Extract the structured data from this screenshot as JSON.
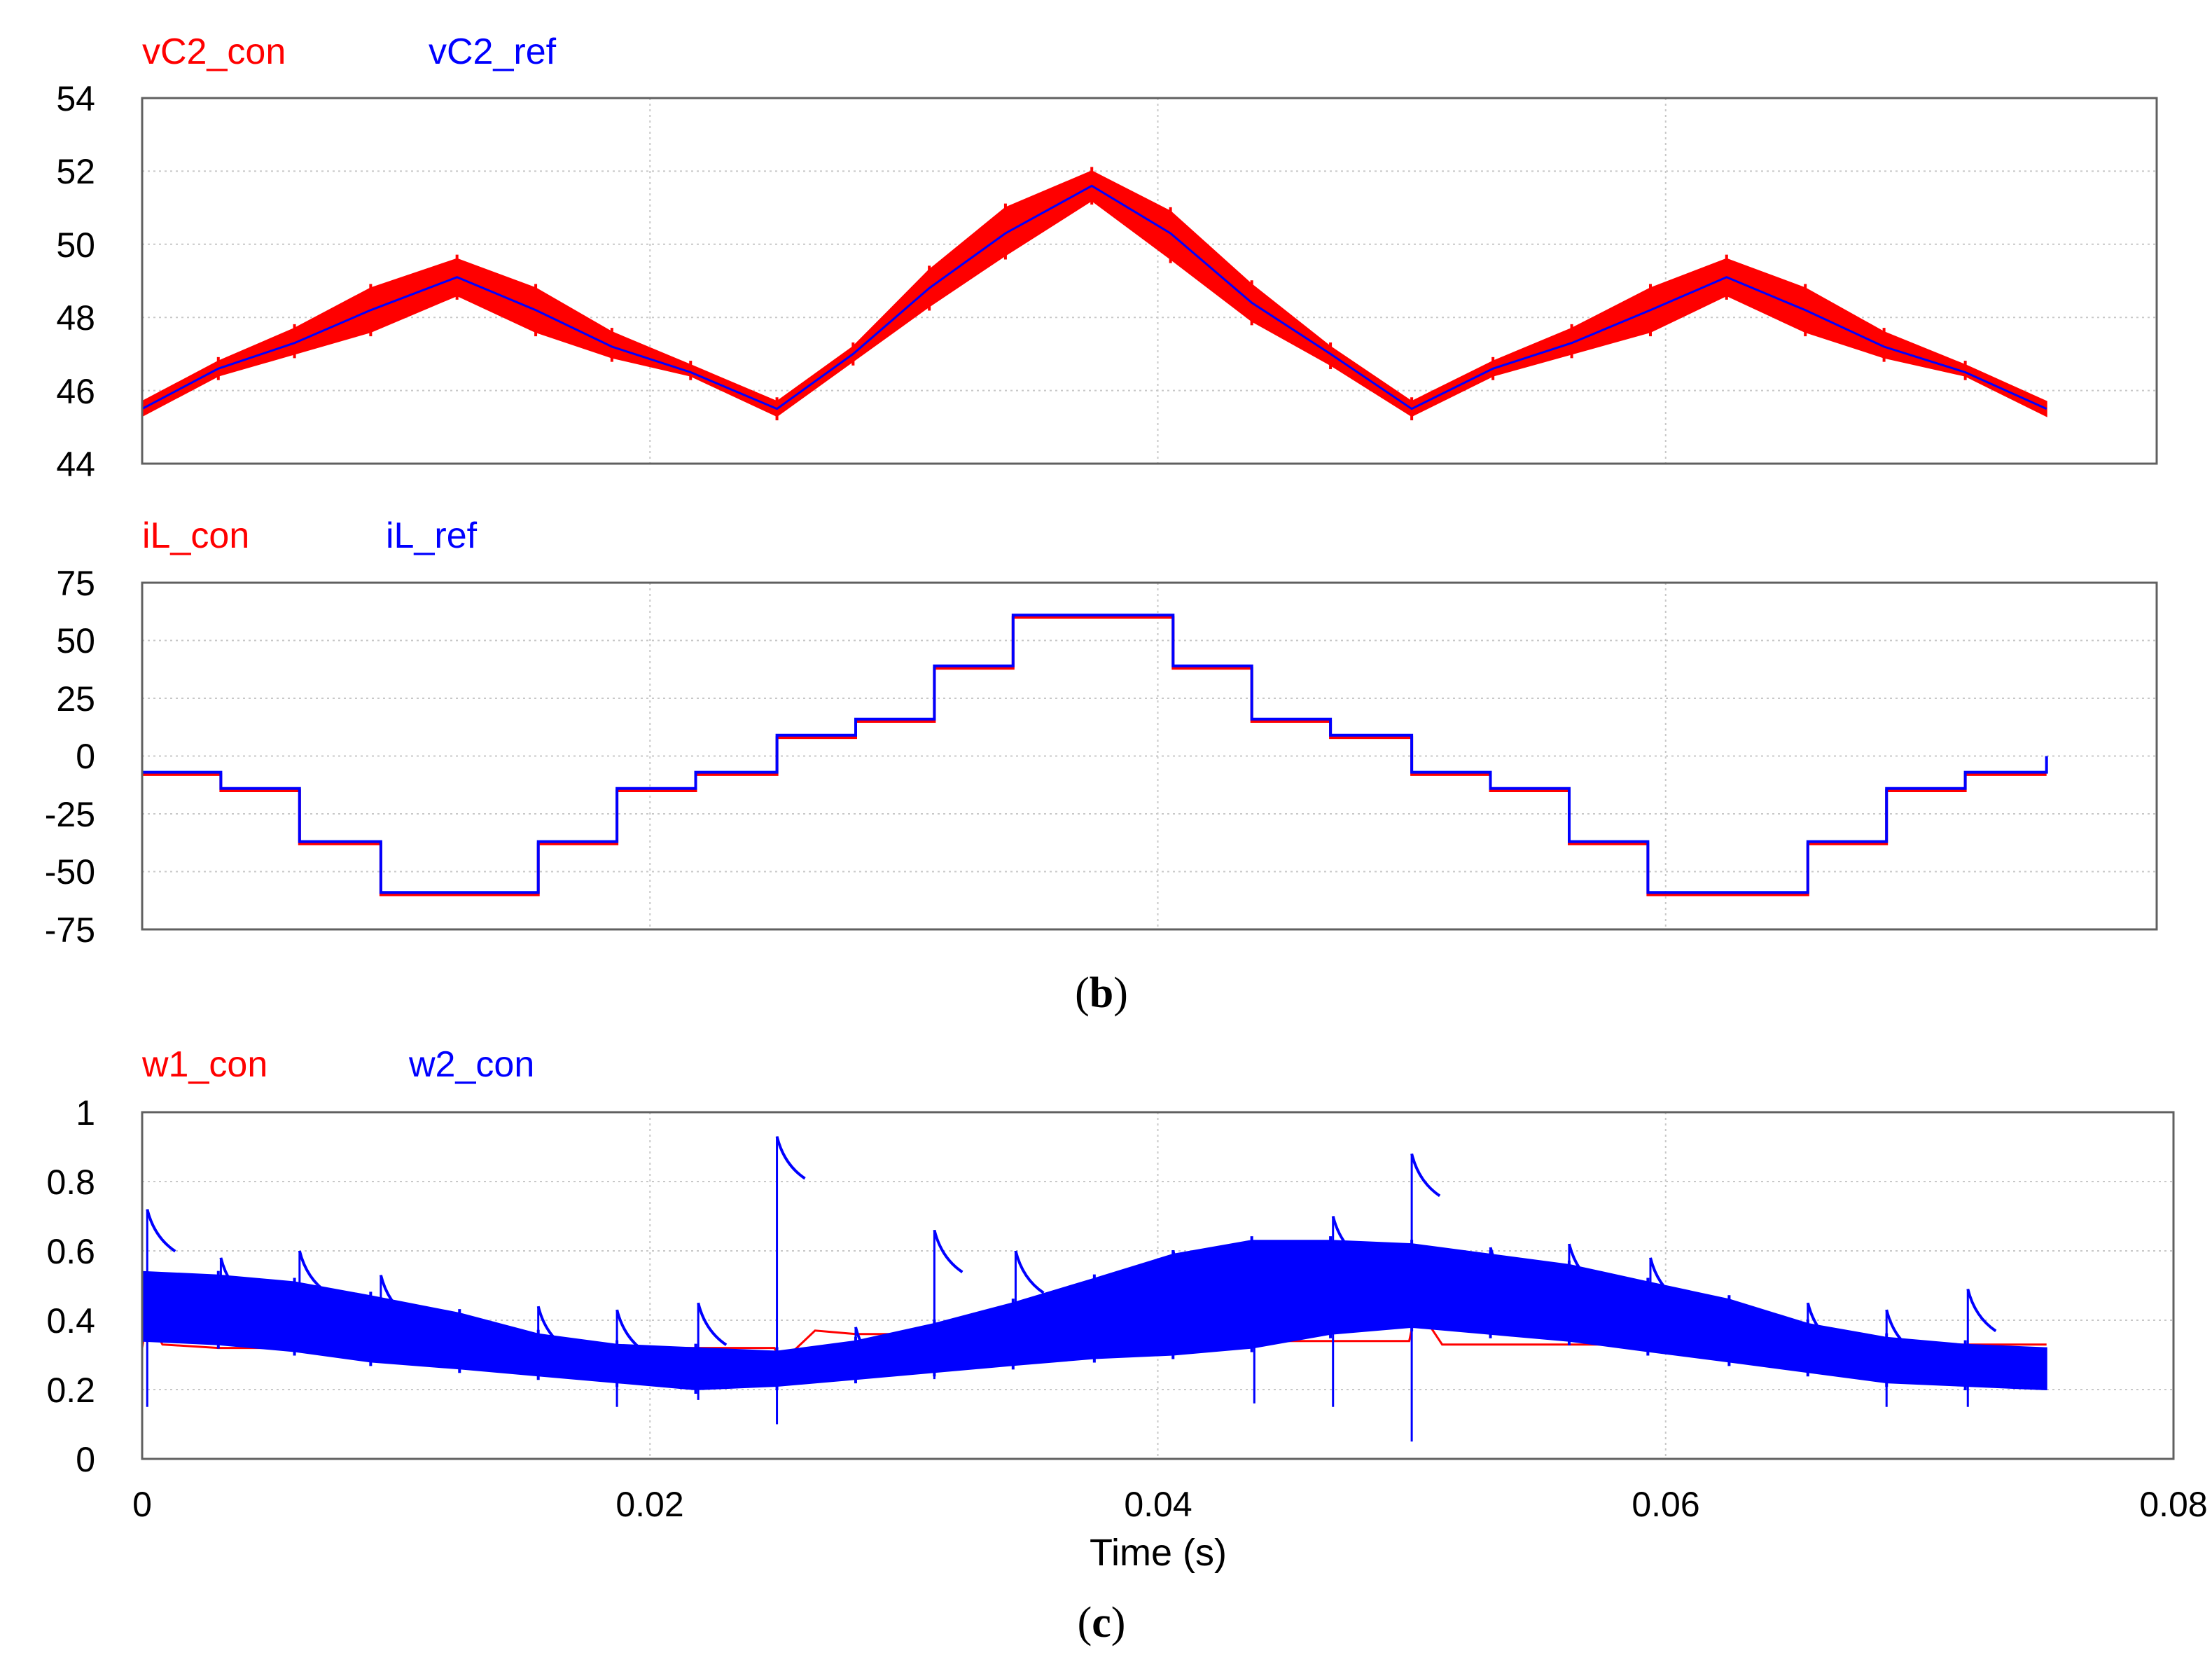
{
  "chart_data": [
    {
      "type": "line",
      "series": [
        {
          "name": "vC2_con",
          "color": "#ff0000",
          "segments": [
            [
              0,
              45.3,
              45.7
            ],
            [
              0.003,
              46.4,
              46.8
            ],
            [
              0.006,
              47,
              47.7
            ],
            [
              0.009,
              47.6,
              48.8
            ],
            [
              0.0124,
              48.6,
              49.6
            ],
            [
              0.0155,
              47.6,
              48.8
            ],
            [
              0.0185,
              46.9,
              47.6
            ],
            [
              0.0216,
              46.4,
              46.7
            ],
            [
              0.025,
              45.3,
              45.7
            ],
            [
              0.028,
              46.8,
              47.2
            ],
            [
              0.031,
              48.3,
              49.3
            ],
            [
              0.034,
              49.7,
              51
            ],
            [
              0.0374,
              51.2,
              52
            ],
            [
              0.0405,
              49.6,
              50.9
            ],
            [
              0.0437,
              47.9,
              48.9
            ],
            [
              0.0468,
              46.7,
              47.2
            ],
            [
              0.05,
              45.3,
              45.7
            ],
            [
              0.0532,
              46.4,
              46.8
            ],
            [
              0.0563,
              47,
              47.7
            ],
            [
              0.0594,
              47.6,
              48.8
            ],
            [
              0.0624,
              48.6,
              49.6
            ],
            [
              0.0655,
              47.6,
              48.8
            ],
            [
              0.0686,
              46.9,
              47.6
            ],
            [
              0.0718,
              46.4,
              46.7
            ],
            [
              0.075,
              45.3,
              45.7
            ]
          ]
        },
        {
          "name": "vC2_ref",
          "color": "#0000ff",
          "x": [
            0,
            0.003,
            0.006,
            0.009,
            0.0124,
            0.0155,
            0.0185,
            0.0216,
            0.025,
            0.028,
            0.031,
            0.034,
            0.0374,
            0.0405,
            0.0437,
            0.0468,
            0.05,
            0.0532,
            0.0563,
            0.0594,
            0.0624,
            0.0655,
            0.0686,
            0.0718,
            0.075
          ],
          "y": [
            45.5,
            46.6,
            47.3,
            48.2,
            49.1,
            48.2,
            47.2,
            46.5,
            45.5,
            47,
            48.8,
            50.3,
            51.6,
            50.3,
            48.4,
            47,
            45.5,
            46.6,
            47.3,
            48.2,
            49.1,
            48.2,
            47.2,
            46.5,
            45.5
          ]
        }
      ],
      "xlim": [
        0,
        0.08
      ],
      "ylim": [
        44,
        54
      ],
      "yticks": [
        "44",
        "46",
        "48",
        "50",
        "52",
        "54"
      ],
      "grid": true
    },
    {
      "type": "line",
      "series": [
        {
          "name": "iL_con",
          "color": "#ff0000",
          "x": [
            0,
            0.0031,
            0.0031,
            0.0062,
            0.0062,
            0.0094,
            0.0094,
            0.0156,
            0.0156,
            0.0187,
            0.0187,
            0.0218,
            0.0218,
            0.025,
            0.025,
            0.0281,
            0.0281,
            0.0312,
            0.0312,
            0.0343,
            0.0343,
            0.0406,
            0.0406,
            0.0437,
            0.0437,
            0.0468,
            0.0468,
            0.05,
            0.05,
            0.0531,
            0.0531,
            0.0562,
            0.0562,
            0.0593,
            0.0593,
            0.0656,
            0.0656,
            0.0687,
            0.0687,
            0.0718,
            0.0718,
            0.075
          ],
          "y": [
            -8,
            -8,
            -15,
            -15,
            -38,
            -38,
            -60,
            -60,
            -38,
            -38,
            -15,
            -15,
            -8,
            -8,
            8,
            8,
            15,
            15,
            38,
            38,
            60,
            60,
            38,
            38,
            15,
            15,
            8,
            8,
            -8,
            -8,
            -15,
            -15,
            -38,
            -38,
            -60,
            -60,
            -38,
            -38,
            -15,
            -15,
            -8,
            -8
          ]
        },
        {
          "name": "iL_ref",
          "color": "#0000ff",
          "x": [
            0,
            0.0031,
            0.0031,
            0.0062,
            0.0062,
            0.0094,
            0.0094,
            0.0156,
            0.0156,
            0.0187,
            0.0187,
            0.0218,
            0.0218,
            0.025,
            0.025,
            0.0281,
            0.0281,
            0.0312,
            0.0312,
            0.0343,
            0.0343,
            0.0406,
            0.0406,
            0.0437,
            0.0437,
            0.0468,
            0.0468,
            0.05,
            0.05,
            0.0531,
            0.0531,
            0.0562,
            0.0562,
            0.0593,
            0.0593,
            0.0656,
            0.0656,
            0.0687,
            0.0687,
            0.0718,
            0.0718,
            0.075,
            0.075
          ],
          "y": [
            -7,
            -7,
            -14,
            -14,
            -37,
            -37,
            -59,
            -59,
            -37,
            -37,
            -14,
            -14,
            -7,
            -7,
            9,
            9,
            16,
            16,
            39,
            39,
            61,
            61,
            39,
            39,
            16,
            16,
            9,
            9,
            -7,
            -7,
            -14,
            -14,
            -37,
            -37,
            -59,
            -59,
            -37,
            -37,
            -14,
            -14,
            -7,
            -7,
            0
          ]
        }
      ],
      "xlim": [
        0,
        0.08
      ],
      "ylim": [
        -75,
        75
      ],
      "yticks": [
        "-75",
        "-50",
        "-25",
        "0",
        "25",
        "50",
        "75"
      ],
      "grid": true
    },
    {
      "type": "line",
      "series": [
        {
          "name": "w1_con",
          "color": "#ff0000",
          "x": [
            0,
            0.0002,
            0.0008,
            0.003,
            0.006,
            0.009,
            0.0125,
            0.0156,
            0.0187,
            0.0218,
            0.0249,
            0.0252,
            0.0265,
            0.0281,
            0.0312,
            0.0343,
            0.0375,
            0.0406,
            0.0437,
            0.0468,
            0.0499,
            0.0502,
            0.0512,
            0.0531,
            0.0562,
            0.0593,
            0.0625,
            0.0656,
            0.0687,
            0.0718,
            0.075
          ],
          "y": [
            0.32,
            0.41,
            0.33,
            0.32,
            0.32,
            0.32,
            0.32,
            0.32,
            0.32,
            0.32,
            0.32,
            0.28,
            0.37,
            0.36,
            0.36,
            0.35,
            0.35,
            0.34,
            0.34,
            0.34,
            0.34,
            0.44,
            0.33,
            0.33,
            0.33,
            0.33,
            0.33,
            0.33,
            0.33,
            0.33,
            0.33
          ]
        },
        {
          "name": "w2_con",
          "color": "#0000ff",
          "segments": [
            [
              0,
              0.34,
              0.54
            ],
            [
              0.003,
              0.33,
              0.53
            ],
            [
              0.006,
              0.31,
              0.51
            ],
            [
              0.009,
              0.28,
              0.47
            ],
            [
              0.0125,
              0.26,
              0.42
            ],
            [
              0.0156,
              0.24,
              0.36
            ],
            [
              0.0187,
              0.22,
              0.33
            ],
            [
              0.0218,
              0.2,
              0.32
            ],
            [
              0.025,
              0.21,
              0.31
            ],
            [
              0.0281,
              0.23,
              0.34
            ],
            [
              0.0312,
              0.25,
              0.39
            ],
            [
              0.0343,
              0.27,
              0.45
            ],
            [
              0.0375,
              0.29,
              0.52
            ],
            [
              0.0406,
              0.3,
              0.59
            ],
            [
              0.0437,
              0.32,
              0.63
            ],
            [
              0.0468,
              0.36,
              0.63
            ],
            [
              0.05,
              0.38,
              0.62
            ],
            [
              0.0531,
              0.36,
              0.59
            ],
            [
              0.0562,
              0.34,
              0.56
            ],
            [
              0.0593,
              0.31,
              0.51
            ],
            [
              0.0625,
              0.28,
              0.46
            ],
            [
              0.0656,
              0.25,
              0.39
            ],
            [
              0.0687,
              0.22,
              0.35
            ],
            [
              0.0718,
              0.21,
              0.33
            ],
            [
              0.075,
              0.2,
              0.32
            ]
          ],
          "spikes": [
            [
              0.0002,
              0.15,
              0.72
            ],
            [
              0.0031,
              0.34,
              0.58
            ],
            [
              0.0062,
              0.33,
              0.6
            ],
            [
              0.0094,
              0.28,
              0.53
            ],
            [
              0.0156,
              0.24,
              0.44
            ],
            [
              0.0187,
              0.15,
              0.43
            ],
            [
              0.0219,
              0.17,
              0.45
            ],
            [
              0.025,
              0.1,
              0.93
            ],
            [
              0.0281,
              0.22,
              0.38
            ],
            [
              0.0312,
              0.23,
              0.66
            ],
            [
              0.0344,
              0.27,
              0.6
            ],
            [
              0.0406,
              0.29,
              0.6
            ],
            [
              0.0438,
              0.16,
              0.63
            ],
            [
              0.0469,
              0.15,
              0.7
            ],
            [
              0.05,
              0.05,
              0.88
            ],
            [
              0.0531,
              0.36,
              0.61
            ],
            [
              0.0562,
              0.34,
              0.62
            ],
            [
              0.0594,
              0.31,
              0.58
            ],
            [
              0.0656,
              0.26,
              0.45
            ],
            [
              0.0687,
              0.15,
              0.43
            ],
            [
              0.0719,
              0.15,
              0.49
            ]
          ]
        }
      ],
      "xlim": [
        0,
        0.08
      ],
      "ylim": [
        0,
        1
      ],
      "yticks": [
        "0",
        "0.2",
        "0.4",
        "0.6",
        "0.8",
        "1"
      ],
      "xticks": [
        "0",
        "0.02",
        "0.04",
        "0.06",
        "0.08"
      ],
      "xlabel": "Time (s)",
      "grid": true
    }
  ],
  "captions": {
    "b_open": "(",
    "b_letter": "b",
    "b_close": ")",
    "c_open": "(",
    "c_letter": "c",
    "c_close": ")"
  }
}
